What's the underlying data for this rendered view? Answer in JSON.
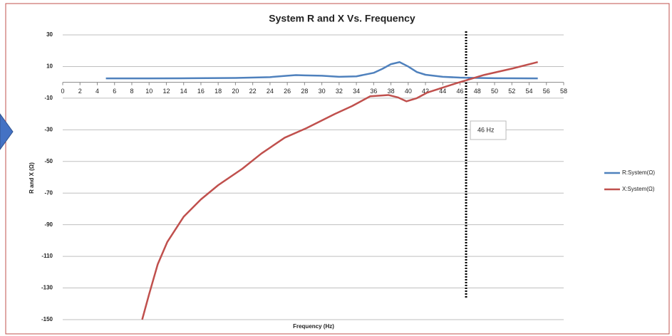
{
  "chart_data": {
    "type": "line",
    "title": "System R and X Vs. Frequency",
    "x_label": "Frequency (Hz)",
    "y_label": "R and X (Ω)",
    "xlim": [
      0,
      58
    ],
    "xticks": [
      0,
      2,
      4,
      6,
      8,
      10,
      12,
      14,
      16,
      18,
      20,
      22,
      24,
      26,
      28,
      30,
      32,
      34,
      36,
      38,
      40,
      42,
      44,
      46,
      48,
      50,
      52,
      54,
      56,
      58
    ],
    "ylim": [
      -150,
      30
    ],
    "yticks": [
      30,
      10,
      -10,
      -30,
      -50,
      -70,
      -90,
      -110,
      -130,
      -150
    ],
    "grid": true,
    "legend": "right",
    "annotation": {
      "text": "46 Hz",
      "x": 46.7
    },
    "series": [
      {
        "name": "R:System(Ω)",
        "color": "#4f81bd",
        "x": [
          5,
          10,
          15,
          20,
          24,
          26,
          27,
          28,
          30,
          32,
          34,
          36,
          37,
          38,
          39,
          40,
          41,
          42,
          44,
          46,
          48,
          50,
          55
        ],
        "values": [
          2.5,
          2.5,
          2.6,
          2.8,
          3.3,
          4.2,
          4.6,
          4.4,
          4.2,
          3.5,
          3.8,
          6,
          8.5,
          11.5,
          12.8,
          10,
          6.5,
          4.8,
          3.5,
          3,
          2.8,
          2.6,
          2.5
        ]
      },
      {
        "name": "X:System(Ω)",
        "color": "#c0504d",
        "x": [
          9.2,
          10,
          11,
          12.1,
          14,
          16,
          18,
          20.8,
          23,
          25.7,
          28.2,
          31.5,
          33.5,
          35.6,
          37.7,
          38.8,
          39.8,
          41,
          42.2,
          45.5,
          48.8,
          52.1,
          55
        ],
        "values": [
          -150,
          -134,
          -115,
          -101,
          -85,
          -74,
          -65,
          -54.6,
          -45,
          -35,
          -29,
          -20,
          -15,
          -8.8,
          -8,
          -9.5,
          -12,
          -10,
          -6.5,
          -0.7,
          4.7,
          8.8,
          12.8
        ]
      }
    ]
  }
}
